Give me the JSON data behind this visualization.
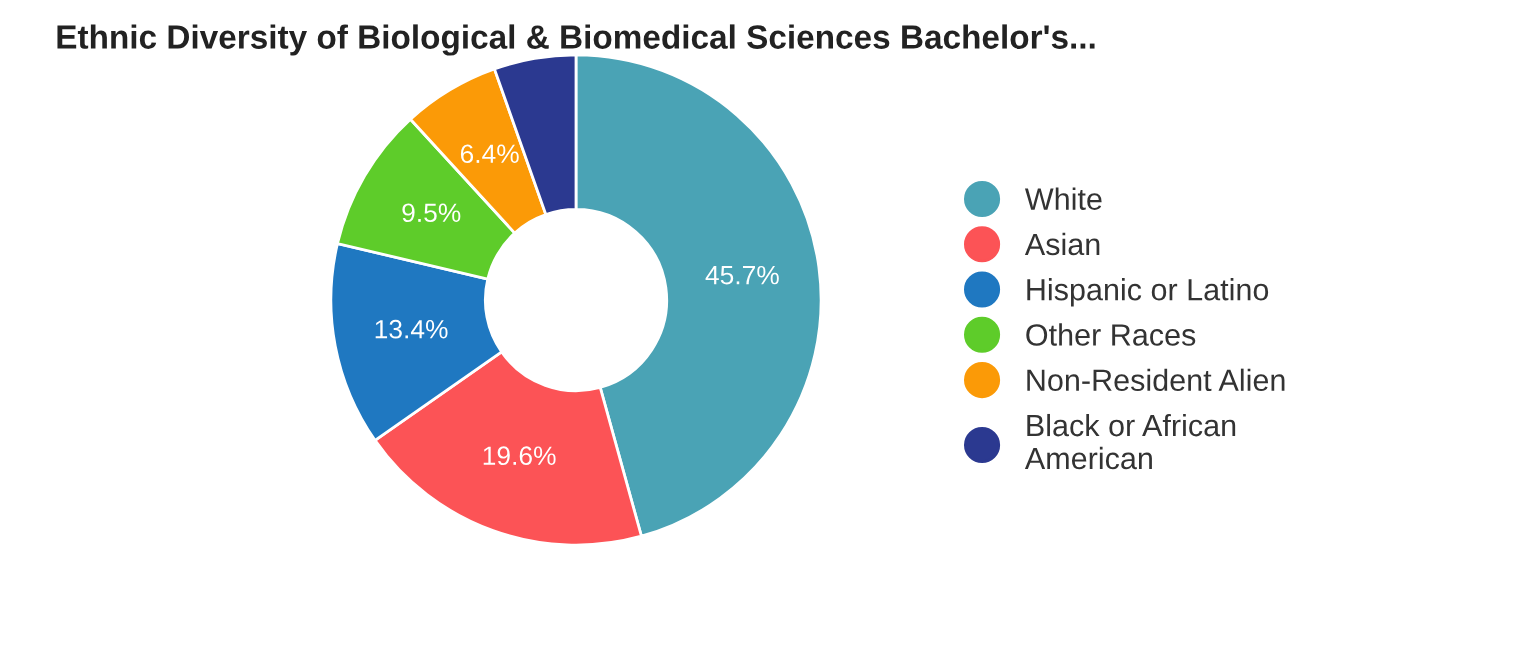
{
  "chart_data": {
    "type": "donut",
    "title": "Ethnic Diversity of Biological & Biomedical Sciences Bachelor's...",
    "categories": [
      "White",
      "Asian",
      "Hispanic or Latino",
      "Other Races",
      "Non-Resident Alien",
      "Black or African\nAmerican"
    ],
    "values": [
      45.7,
      19.6,
      13.4,
      9.5,
      6.4,
      5.4
    ],
    "colors": [
      "#4aa3b5",
      "#fc5356",
      "#1f78c1",
      "#5ecc2a",
      "#fb9a07",
      "#2b3990"
    ],
    "value_labels": [
      "45.7%",
      "19.6%",
      "13.4%",
      "9.5%",
      "6.4%",
      null
    ],
    "legend": "right"
  }
}
